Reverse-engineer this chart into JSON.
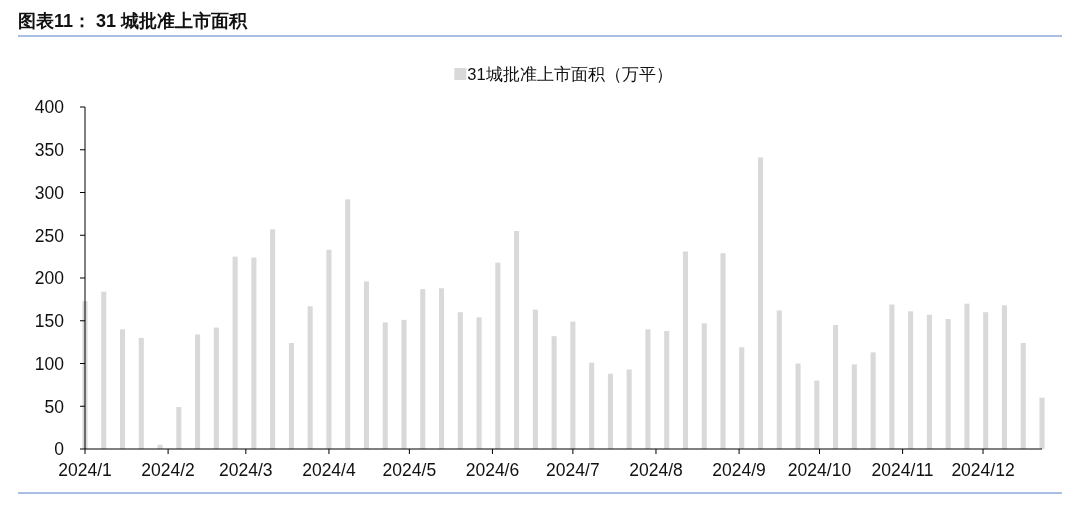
{
  "chart_data": {
    "type": "bar",
    "title": "图表11： 31 城批准上市面积",
    "x": [
      "2024-01-01",
      "2024-01-08",
      "2024-01-15",
      "2024-01-22",
      "2024-01-29",
      "2024-02-05",
      "2024-02-12",
      "2024-02-19",
      "2024-02-26",
      "2024-03-04",
      "2024-03-11",
      "2024-03-18",
      "2024-03-25",
      "2024-04-01",
      "2024-04-08",
      "2024-04-15",
      "2024-04-22",
      "2024-04-29",
      "2024-05-06",
      "2024-05-13",
      "2024-05-20",
      "2024-05-27",
      "2024-06-03",
      "2024-06-10",
      "2024-06-17",
      "2024-06-24",
      "2024-07-01",
      "2024-07-08",
      "2024-07-15",
      "2024-07-22",
      "2024-07-29",
      "2024-08-05",
      "2024-08-12",
      "2024-08-19",
      "2024-08-26",
      "2024-09-02",
      "2024-09-09",
      "2024-09-16",
      "2024-09-23",
      "2024-09-30",
      "2024-10-07",
      "2024-10-14",
      "2024-10-21",
      "2024-10-28",
      "2024-11-04",
      "2024-11-11",
      "2024-11-18",
      "2024-11-25",
      "2024-12-02",
      "2024-12-09",
      "2024-12-16",
      "2024-12-23"
    ],
    "series": [
      {
        "name": "31城批准上市面积（万平）",
        "color": "#d9d9d9",
        "values": [
          173,
          184,
          140,
          130,
          5,
          49,
          134,
          142,
          225,
          224,
          257,
          124,
          167,
          233,
          292,
          196,
          148,
          151,
          187,
          188,
          160,
          154,
          218,
          255,
          163,
          132,
          149,
          101,
          88,
          93,
          140,
          138,
          231,
          147,
          229,
          119,
          341,
          162,
          100,
          80,
          145,
          99,
          113,
          169,
          161,
          157,
          152,
          170,
          160,
          168,
          124,
          60
        ]
      }
    ],
    "xlim": [
      "2024-01-01",
      "2024-12-23"
    ],
    "xticks": [
      {
        "value": "2024-01-01",
        "label": "2024/1"
      },
      {
        "value": "2024-02-01",
        "label": "2024/2"
      },
      {
        "value": "2024-03-01",
        "label": "2024/3"
      },
      {
        "value": "2024-04-01",
        "label": "2024/4"
      },
      {
        "value": "2024-05-01",
        "label": "2024/5"
      },
      {
        "value": "2024-06-01",
        "label": "2024/6"
      },
      {
        "value": "2024-07-01",
        "label": "2024/7"
      },
      {
        "value": "2024-08-01",
        "label": "2024/8"
      },
      {
        "value": "2024-09-01",
        "label": "2024/9"
      },
      {
        "value": "2024-10-01",
        "label": "2024/10"
      },
      {
        "value": "2024-11-01",
        "label": "2024/11"
      },
      {
        "value": "2024-12-01",
        "label": "2024/12"
      }
    ],
    "ylim": [
      0,
      400
    ],
    "yticks": [
      0,
      50,
      100,
      150,
      200,
      250,
      300,
      350,
      400
    ],
    "legend": "top"
  }
}
